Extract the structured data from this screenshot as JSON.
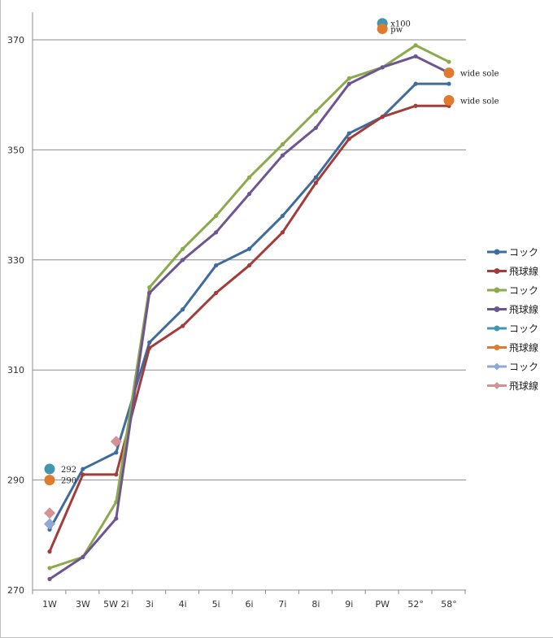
{
  "chart_data": {
    "type": "line",
    "categories": [
      "1W",
      "3W",
      "5W 2i",
      "3i",
      "4i",
      "5i",
      "6i",
      "7i",
      "8i",
      "9i",
      "PW",
      "52°",
      "58°"
    ],
    "ylim": [
      270,
      373
    ],
    "yticks": [
      270,
      290,
      310,
      330,
      350,
      370
    ],
    "grid": true,
    "legend_position": "right",
    "series": [
      {
        "name": "コック",
        "color": "#3F6C9E",
        "marker": "circle",
        "values": [
          281,
          292,
          295,
          315,
          321,
          329,
          332,
          338,
          345,
          353,
          356,
          362,
          362
        ]
      },
      {
        "name": "飛球線",
        "color": "#A23D39",
        "marker": "circle",
        "values": [
          277,
          291,
          291,
          314,
          318,
          324,
          329,
          335,
          344,
          352,
          356,
          358,
          358
        ]
      },
      {
        "name": "コック",
        "color": "#8BAA4B",
        "marker": "circle",
        "values": [
          274,
          276,
          286,
          325,
          332,
          338,
          345,
          351,
          357,
          363,
          365,
          369,
          366
        ]
      },
      {
        "name": "飛球線",
        "color": "#6E5591",
        "marker": "circle",
        "values": [
          272,
          276,
          283,
          324,
          330,
          335,
          342,
          349,
          354,
          362,
          365,
          367,
          364
        ]
      },
      {
        "name": "コック",
        "color": "#4296B0",
        "marker": "circle",
        "points": [
          {
            "x": "1W",
            "y": 292,
            "label": "292"
          },
          {
            "x": "PW",
            "y": 373,
            "label": "x100"
          }
        ]
      },
      {
        "name": "飛球線",
        "color": "#E07B2E",
        "marker": "circle",
        "points": [
          {
            "x": "1W",
            "y": 290,
            "label": "290"
          },
          {
            "x": "PW",
            "y": 372,
            "label": "pw"
          },
          {
            "x": "58°",
            "y": 364,
            "label": "wide sole"
          },
          {
            "x": "58°",
            "y": 359,
            "label": "wide sole"
          }
        ]
      },
      {
        "name": "コック",
        "color": "#8FA8D6",
        "marker": "diamond",
        "points": [
          {
            "x": "1W",
            "y": 282
          }
        ]
      },
      {
        "name": "飛球線",
        "color": "#D69292",
        "marker": "diamond",
        "points": [
          {
            "x": "1W",
            "y": 284
          },
          {
            "x": "5W 2i",
            "y": 297
          }
        ]
      }
    ]
  }
}
